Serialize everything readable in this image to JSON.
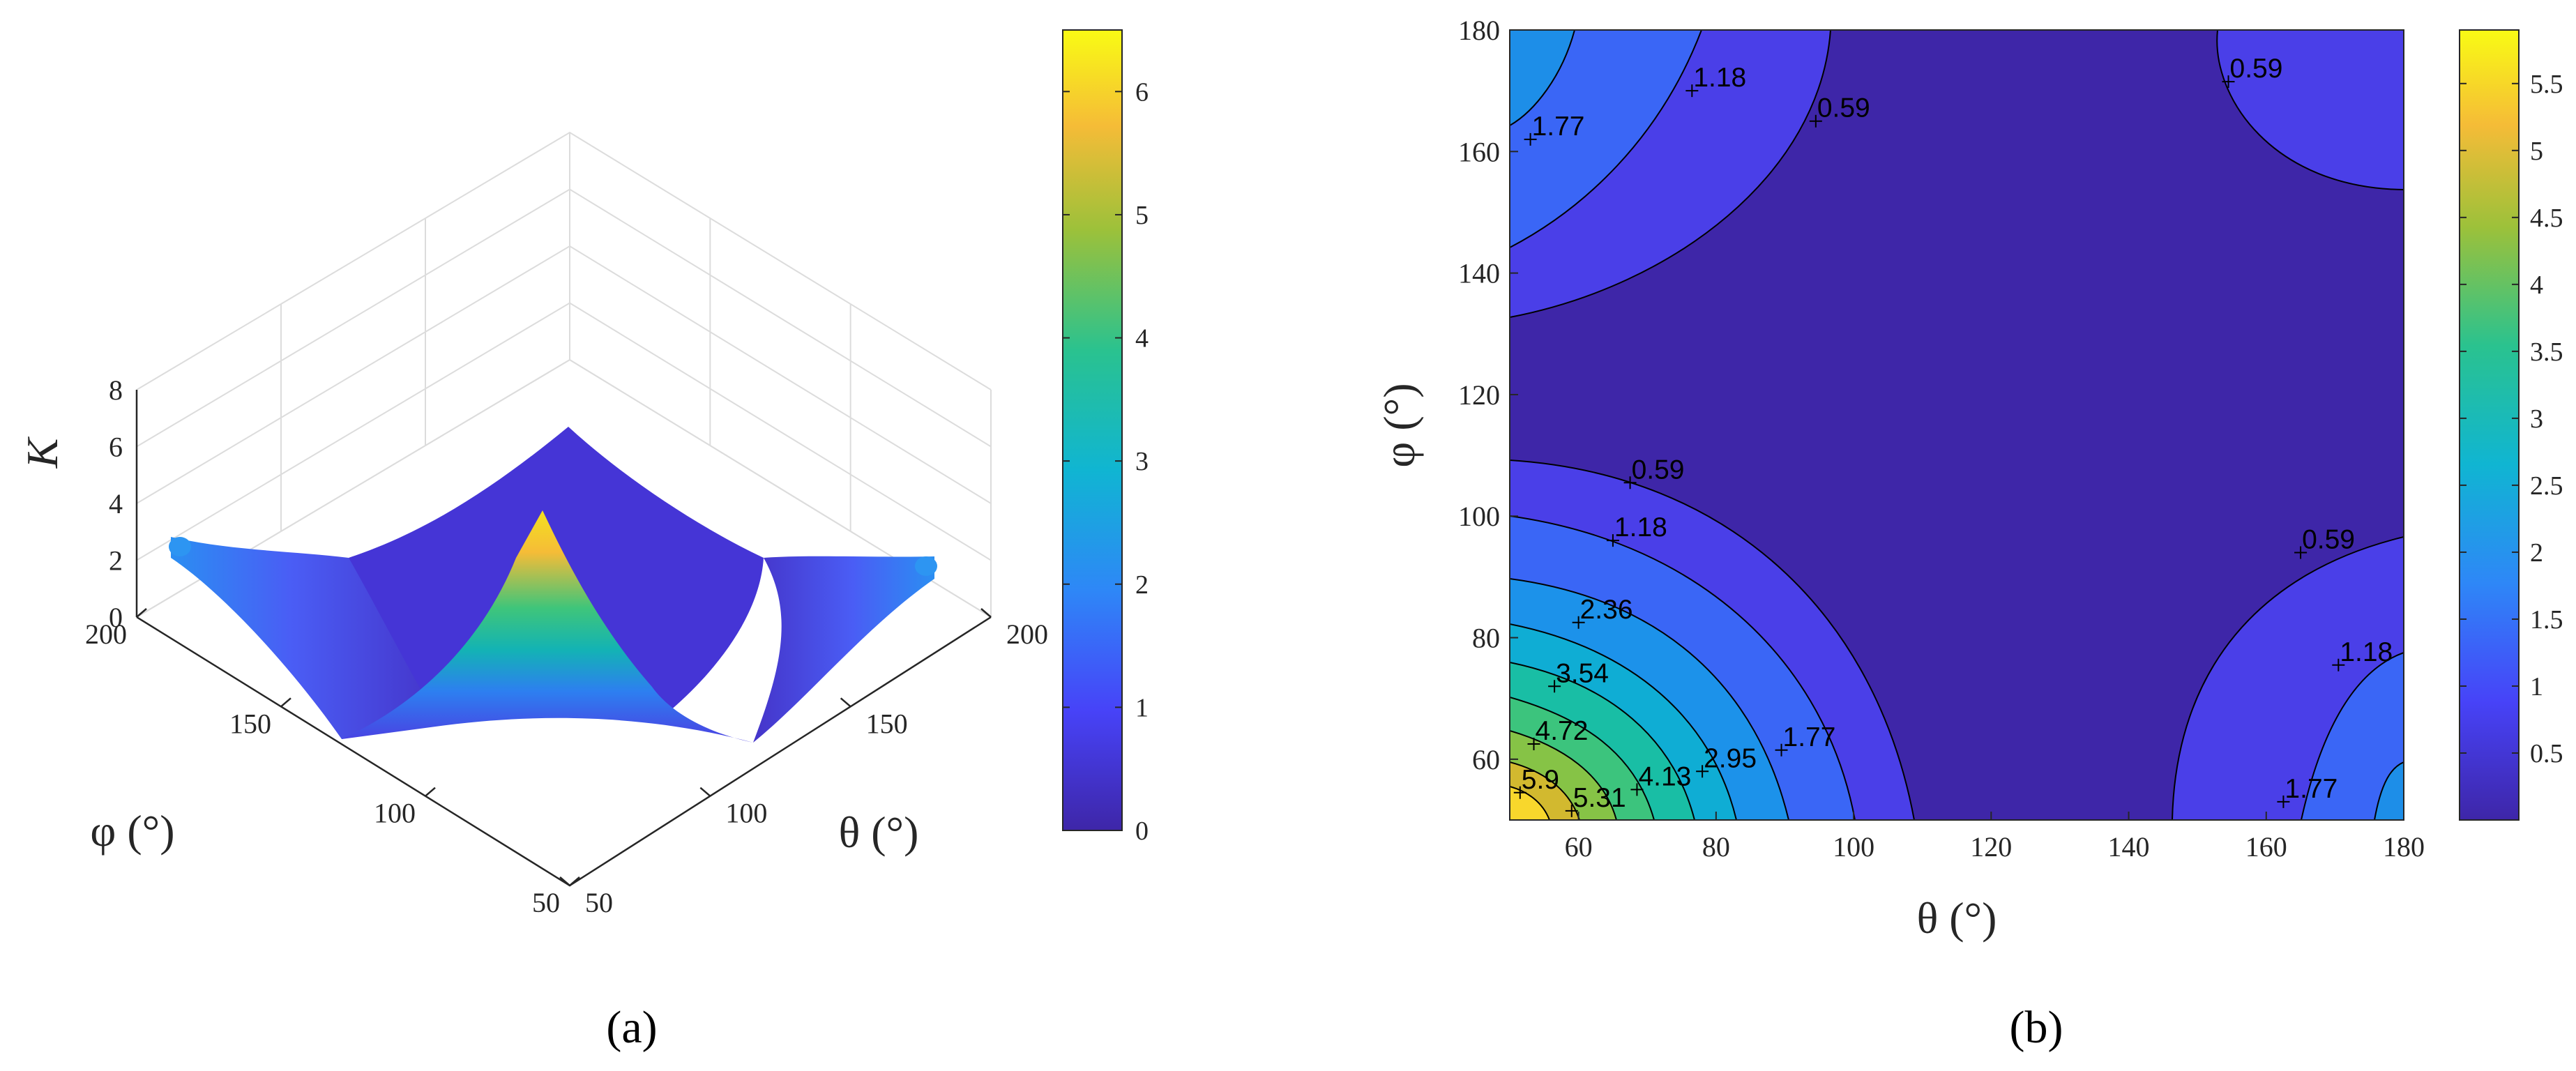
{
  "chart_data": [
    {
      "type": "surface",
      "panel_label": "(a)",
      "title": "",
      "xlabel": "θ (°)",
      "ylabel": "φ (°)",
      "zlabel": "K",
      "xlim": [
        50,
        200
      ],
      "ylim": [
        50,
        200
      ],
      "zlim": [
        0,
        8
      ],
      "x_ticks": [
        "50",
        "100",
        "150",
        "200"
      ],
      "y_ticks": [
        "50",
        "100",
        "150",
        "200"
      ],
      "z_ticks": [
        "0",
        "2",
        "4",
        "6",
        "8"
      ],
      "grid": true,
      "surface_peak": {
        "theta": 50,
        "phi": 50,
        "K": 6.4
      },
      "colorbar": {
        "range": [
          0,
          6.5
        ],
        "ticks": [
          "0",
          "1",
          "2",
          "3",
          "4",
          "5",
          "6"
        ],
        "colormap": "parula"
      }
    },
    {
      "type": "contour",
      "panel_label": "(b)",
      "title": "",
      "xlabel": "θ (°)",
      "ylabel": "φ (°)",
      "xlim": [
        50,
        180
      ],
      "ylim": [
        50,
        180
      ],
      "x_ticks": [
        "60",
        "80",
        "100",
        "120",
        "140",
        "160",
        "180"
      ],
      "y_ticks": [
        "60",
        "80",
        "100",
        "120",
        "140",
        "160",
        "180"
      ],
      "levels": [
        0.59,
        1.18,
        1.77,
        2.36,
        2.95,
        3.54,
        4.13,
        4.72,
        5.31,
        5.9
      ],
      "contour_labels": [
        {
          "text": "1.18",
          "theta": 76.5,
          "phi": 170
        },
        {
          "text": "1.77",
          "theta": 53,
          "phi": 162
        },
        {
          "text": "0.59",
          "theta": 94.5,
          "phi": 165
        },
        {
          "text": "0.59",
          "theta": 154.5,
          "phi": 171.5
        },
        {
          "text": "0.59",
          "theta": 67.5,
          "phi": 105.5
        },
        {
          "text": "1.18",
          "theta": 65,
          "phi": 96
        },
        {
          "text": "0.59",
          "theta": 165,
          "phi": 94
        },
        {
          "text": "2.36",
          "theta": 60,
          "phi": 82.5
        },
        {
          "text": "1.18",
          "theta": 170.5,
          "phi": 75.5
        },
        {
          "text": "3.54",
          "theta": 56.5,
          "phi": 72
        },
        {
          "text": "4.72",
          "theta": 53.5,
          "phi": 62.5
        },
        {
          "text": "1.77",
          "theta": 89.5,
          "phi": 61.5
        },
        {
          "text": "2.95",
          "theta": 78,
          "phi": 58
        },
        {
          "text": "4.13",
          "theta": 68.5,
          "phi": 55
        },
        {
          "text": "5.9",
          "theta": 51.5,
          "phi": 54.5
        },
        {
          "text": "5.31",
          "theta": 59,
          "phi": 51.5
        },
        {
          "text": "1.77",
          "theta": 162.5,
          "phi": 53
        }
      ],
      "colorbar": {
        "range": [
          0,
          5.9
        ],
        "ticks": [
          "0.5",
          "1",
          "1.5",
          "2",
          "2.5",
          "3",
          "3.5",
          "4",
          "4.5",
          "5",
          "5.5"
        ],
        "colormap": "parula"
      }
    }
  ]
}
